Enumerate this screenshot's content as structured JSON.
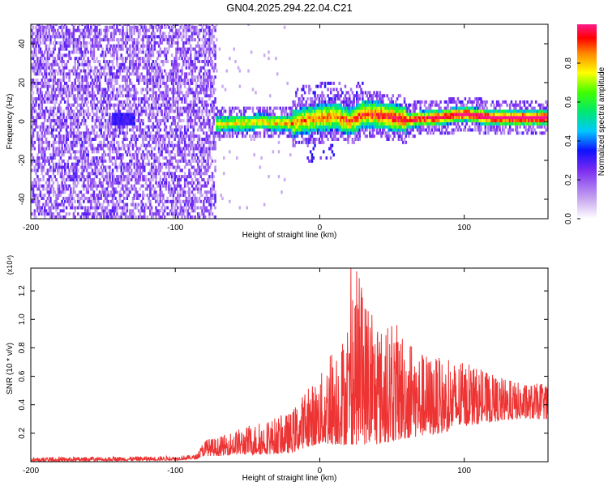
{
  "title": "GN04.2025.294.22.04.C21",
  "chart_data": [
    {
      "type": "heatmap",
      "xlabel": "Height of straight line (km)",
      "ylabel": "Frequency (Hz)",
      "xlim": [
        -200,
        158
      ],
      "ylim": [
        -50,
        50
      ],
      "xticks": [
        -200,
        -100,
        0,
        100
      ],
      "yticks": [
        -40,
        -20,
        0,
        20,
        40
      ],
      "colorbar": {
        "label": "Normalized spectral amplitude",
        "range": [
          0.0,
          1.0
        ],
        "ticks": [
          "0.0",
          "0.2",
          "0.4",
          "0.6",
          "0.8"
        ],
        "tick_values": [
          0.0,
          0.2,
          0.4,
          0.6,
          0.8
        ]
      },
      "ridge_frequency": {
        "x": [
          -100,
          -70,
          -40,
          -20,
          -10,
          0,
          10,
          20,
          30,
          45,
          60,
          80,
          100,
          120,
          158
        ],
        "y": [
          0,
          -2,
          -1,
          -2,
          0,
          1,
          2,
          -1,
          3,
          2,
          0,
          1,
          3,
          1,
          1
        ]
      }
    },
    {
      "type": "line",
      "xlabel": "Height of straight line (km)",
      "ylabel": "SNR (10 * v/v)",
      "y_multiplier": "(x10⁴)",
      "xlim": [
        -200,
        158
      ],
      "ylim": [
        0,
        1.36
      ],
      "xticks": [
        -200,
        -100,
        0,
        100
      ],
      "yticks": [
        "0.2",
        "0.4",
        "0.6",
        "0.8",
        "1.0",
        "1.2"
      ],
      "ytick_values": [
        0.2,
        0.4,
        0.6,
        0.8,
        1.0,
        1.2
      ],
      "color": "#ee3333",
      "envelope": {
        "x": [
          -200,
          -100,
          -85,
          -80,
          -70,
          -60,
          -40,
          -20,
          -10,
          0,
          10,
          20,
          25,
          40,
          55,
          70,
          85,
          100,
          120,
          140,
          158
        ],
        "max": [
          0.03,
          0.04,
          0.05,
          0.16,
          0.17,
          0.22,
          0.28,
          0.35,
          0.5,
          0.6,
          0.85,
          0.92,
          1.36,
          0.95,
          0.97,
          0.78,
          0.72,
          0.7,
          0.61,
          0.55,
          0.55
        ],
        "min": [
          0.0,
          0.01,
          0.02,
          0.04,
          0.04,
          0.05,
          0.05,
          0.06,
          0.1,
          0.12,
          0.12,
          0.12,
          0.12,
          0.12,
          0.15,
          0.18,
          0.2,
          0.25,
          0.28,
          0.3,
          0.3
        ]
      }
    }
  ]
}
